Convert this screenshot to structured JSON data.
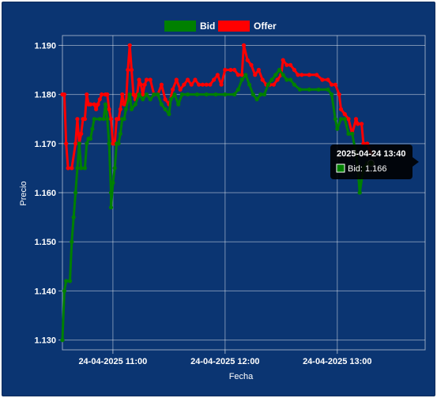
{
  "chart_data": {
    "type": "line",
    "title": "",
    "xlabel": "Fecha",
    "ylabel": "Precio",
    "ylim": [
      1.128,
      1.192
    ],
    "xlim": [
      "2025-04-24 10:33",
      "2025-04-24 13:47"
    ],
    "y_ticks": [
      "1.130",
      "1.140",
      "1.150",
      "1.160",
      "1.170",
      "1.180",
      "1.190"
    ],
    "x_ticks": [
      {
        "t": "2025-04-24 11:00",
        "label": "24-04-2025 11:00"
      },
      {
        "t": "2025-04-24 12:00",
        "label": "24-04-2025 12:00"
      },
      {
        "t": "2025-04-24 13:00",
        "label": "24-04-2025 13:00"
      }
    ],
    "grid": true,
    "legend_position": "top-center",
    "series": [
      {
        "name": "Bid",
        "color": "#008000",
        "points": [
          [
            "2025-04-24 10:33",
            1.13
          ],
          [
            "2025-04-24 10:34",
            1.14
          ],
          [
            "2025-04-24 10:35",
            1.142
          ],
          [
            "2025-04-24 10:37",
            1.142
          ],
          [
            "2025-04-24 10:38",
            1.15
          ],
          [
            "2025-04-24 10:39",
            1.155
          ],
          [
            "2025-04-24 10:40",
            1.16
          ],
          [
            "2025-04-24 10:41",
            1.165
          ],
          [
            "2025-04-24 10:42",
            1.17
          ],
          [
            "2025-04-24 10:43",
            1.165
          ],
          [
            "2025-04-24 10:45",
            1.165
          ],
          [
            "2025-04-24 10:46",
            1.17
          ],
          [
            "2025-04-24 10:47",
            1.171
          ],
          [
            "2025-04-24 10:48",
            1.171
          ],
          [
            "2025-04-24 10:49",
            1.173
          ],
          [
            "2025-04-24 10:50",
            1.175
          ],
          [
            "2025-04-24 10:53",
            1.175
          ],
          [
            "2025-04-24 10:55",
            1.175
          ],
          [
            "2025-04-24 10:56",
            1.178
          ],
          [
            "2025-04-24 10:57",
            1.175
          ],
          [
            "2025-04-24 10:58",
            1.17
          ],
          [
            "2025-04-24 10:59",
            1.16
          ],
          [
            "2025-04-24 10:59",
            1.157
          ],
          [
            "2025-04-24 11:00",
            1.162
          ],
          [
            "2025-04-24 11:01",
            1.165
          ],
          [
            "2025-04-24 11:02",
            1.17
          ],
          [
            "2025-04-24 11:03",
            1.17
          ],
          [
            "2025-04-24 11:04",
            1.172
          ],
          [
            "2025-04-24 11:05",
            1.175
          ],
          [
            "2025-04-24 11:06",
            1.175
          ],
          [
            "2025-04-24 11:07",
            1.177
          ],
          [
            "2025-04-24 11:09",
            1.18
          ],
          [
            "2025-04-24 11:10",
            1.177
          ],
          [
            "2025-04-24 11:12",
            1.178
          ],
          [
            "2025-04-24 11:14",
            1.18
          ],
          [
            "2025-04-24 11:16",
            1.179
          ],
          [
            "2025-04-24 11:18",
            1.18
          ],
          [
            "2025-04-24 11:20",
            1.179
          ],
          [
            "2025-04-24 11:22",
            1.18
          ],
          [
            "2025-04-24 11:24",
            1.18
          ],
          [
            "2025-04-24 11:26",
            1.178
          ],
          [
            "2025-04-24 11:28",
            1.177
          ],
          [
            "2025-04-24 11:30",
            1.176
          ],
          [
            "2025-04-24 11:31",
            1.179
          ],
          [
            "2025-04-24 11:33",
            1.18
          ],
          [
            "2025-04-24 11:35",
            1.178
          ],
          [
            "2025-04-24 11:37",
            1.18
          ],
          [
            "2025-04-24 11:40",
            1.18
          ],
          [
            "2025-04-24 11:45",
            1.18
          ],
          [
            "2025-04-24 11:50",
            1.18
          ],
          [
            "2025-04-24 11:55",
            1.18
          ],
          [
            "2025-04-24 12:00",
            1.18
          ],
          [
            "2025-04-24 12:05",
            1.18
          ],
          [
            "2025-04-24 12:07",
            1.181
          ],
          [
            "2025-04-24 12:09",
            1.183
          ],
          [
            "2025-04-24 12:11",
            1.184
          ],
          [
            "2025-04-24 12:13",
            1.182
          ],
          [
            "2025-04-24 12:15",
            1.18
          ],
          [
            "2025-04-24 12:17",
            1.179
          ],
          [
            "2025-04-24 12:19",
            1.18
          ],
          [
            "2025-04-24 12:21",
            1.18
          ],
          [
            "2025-04-24 12:23",
            1.182
          ],
          [
            "2025-04-24 12:25",
            1.183
          ],
          [
            "2025-04-24 12:27",
            1.184
          ],
          [
            "2025-04-24 12:29",
            1.185
          ],
          [
            "2025-04-24 12:31",
            1.184
          ],
          [
            "2025-04-24 12:33",
            1.183
          ],
          [
            "2025-04-24 12:35",
            1.183
          ],
          [
            "2025-04-24 12:37",
            1.182
          ],
          [
            "2025-04-24 12:40",
            1.181
          ],
          [
            "2025-04-24 12:45",
            1.181
          ],
          [
            "2025-04-24 12:50",
            1.181
          ],
          [
            "2025-04-24 12:55",
            1.181
          ],
          [
            "2025-04-24 12:57",
            1.18
          ],
          [
            "2025-04-24 12:59",
            1.175
          ],
          [
            "2025-04-24 13:00",
            1.173
          ],
          [
            "2025-04-24 13:02",
            1.175
          ],
          [
            "2025-04-24 13:04",
            1.175
          ],
          [
            "2025-04-24 13:06",
            1.172
          ],
          [
            "2025-04-24 13:08",
            1.172
          ],
          [
            "2025-04-24 13:10",
            1.168
          ],
          [
            "2025-04-24 13:11",
            1.165
          ],
          [
            "2025-04-24 13:12",
            1.16
          ],
          [
            "2025-04-24 13:14",
            1.165
          ],
          [
            "2025-04-24 13:16",
            1.166
          ],
          [
            "2025-04-24 13:18",
            1.166
          ]
        ]
      },
      {
        "name": "Offer",
        "color": "#ff0000",
        "points": [
          [
            "2025-04-24 10:33",
            1.18
          ],
          [
            "2025-04-24 10:34",
            1.18
          ],
          [
            "2025-04-24 10:35",
            1.17
          ],
          [
            "2025-04-24 10:36",
            1.165
          ],
          [
            "2025-04-24 10:38",
            1.165
          ],
          [
            "2025-04-24 10:40",
            1.17
          ],
          [
            "2025-04-24 10:41",
            1.175
          ],
          [
            "2025-04-24 10:42",
            1.17
          ],
          [
            "2025-04-24 10:43",
            1.172
          ],
          [
            "2025-04-24 10:44",
            1.175
          ],
          [
            "2025-04-24 10:45",
            1.175
          ],
          [
            "2025-04-24 10:46",
            1.18
          ],
          [
            "2025-04-24 10:47",
            1.178
          ],
          [
            "2025-04-24 10:48",
            1.178
          ],
          [
            "2025-04-24 10:50",
            1.178
          ],
          [
            "2025-04-24 10:51",
            1.177
          ],
          [
            "2025-04-24 10:52",
            1.178
          ],
          [
            "2025-04-24 10:53",
            1.179
          ],
          [
            "2025-04-24 10:54",
            1.18
          ],
          [
            "2025-04-24 10:56",
            1.18
          ],
          [
            "2025-04-24 10:57",
            1.18
          ],
          [
            "2025-04-24 10:58",
            1.177
          ],
          [
            "2025-04-24 10:59",
            1.175
          ],
          [
            "2025-04-24 11:00",
            1.17
          ],
          [
            "2025-04-24 11:01",
            1.17
          ],
          [
            "2025-04-24 11:02",
            1.175
          ],
          [
            "2025-04-24 11:03",
            1.175
          ],
          [
            "2025-04-24 11:04",
            1.177
          ],
          [
            "2025-04-24 11:05",
            1.18
          ],
          [
            "2025-04-24 11:06",
            1.178
          ],
          [
            "2025-04-24 11:07",
            1.178
          ],
          [
            "2025-04-24 11:08",
            1.185
          ],
          [
            "2025-04-24 11:09",
            1.19
          ],
          [
            "2025-04-24 11:10",
            1.185
          ],
          [
            "2025-04-24 11:11",
            1.18
          ],
          [
            "2025-04-24 11:12",
            1.179
          ],
          [
            "2025-04-24 11:13",
            1.18
          ],
          [
            "2025-04-24 11:14",
            1.183
          ],
          [
            "2025-04-24 11:15",
            1.182
          ],
          [
            "2025-04-24 11:16",
            1.18
          ],
          [
            "2025-04-24 11:17",
            1.182
          ],
          [
            "2025-04-24 11:18",
            1.183
          ],
          [
            "2025-04-24 11:20",
            1.183
          ],
          [
            "2025-04-24 11:22",
            1.18
          ],
          [
            "2025-04-24 11:24",
            1.18
          ],
          [
            "2025-04-24 11:26",
            1.182
          ],
          [
            "2025-04-24 11:28",
            1.179
          ],
          [
            "2025-04-24 11:30",
            1.178
          ],
          [
            "2025-04-24 11:32",
            1.181
          ],
          [
            "2025-04-24 11:34",
            1.183
          ],
          [
            "2025-04-24 11:36",
            1.181
          ],
          [
            "2025-04-24 11:38",
            1.182
          ],
          [
            "2025-04-24 11:40",
            1.183
          ],
          [
            "2025-04-24 11:42",
            1.182
          ],
          [
            "2025-04-24 11:44",
            1.183
          ],
          [
            "2025-04-24 11:46",
            1.182
          ],
          [
            "2025-04-24 11:48",
            1.182
          ],
          [
            "2025-04-24 11:50",
            1.182
          ],
          [
            "2025-04-24 11:52",
            1.182
          ],
          [
            "2025-04-24 11:54",
            1.183
          ],
          [
            "2025-04-24 11:56",
            1.184
          ],
          [
            "2025-04-24 11:58",
            1.182
          ],
          [
            "2025-04-24 12:00",
            1.185
          ],
          [
            "2025-04-24 12:03",
            1.185
          ],
          [
            "2025-04-24 12:05",
            1.185
          ],
          [
            "2025-04-24 12:07",
            1.184
          ],
          [
            "2025-04-24 12:09",
            1.184
          ],
          [
            "2025-04-24 12:10",
            1.19
          ],
          [
            "2025-04-24 12:12",
            1.187
          ],
          [
            "2025-04-24 12:14",
            1.186
          ],
          [
            "2025-04-24 12:16",
            1.184
          ],
          [
            "2025-04-24 12:18",
            1.185
          ],
          [
            "2025-04-24 12:20",
            1.183
          ],
          [
            "2025-04-24 12:22",
            1.182
          ],
          [
            "2025-04-24 12:24",
            1.182
          ],
          [
            "2025-04-24 12:26",
            1.182
          ],
          [
            "2025-04-24 12:28",
            1.183
          ],
          [
            "2025-04-24 12:30",
            1.184
          ],
          [
            "2025-04-24 12:31",
            1.187
          ],
          [
            "2025-04-24 12:33",
            1.186
          ],
          [
            "2025-04-24 12:35",
            1.186
          ],
          [
            "2025-04-24 12:37",
            1.185
          ],
          [
            "2025-04-24 12:39",
            1.184
          ],
          [
            "2025-04-24 12:41",
            1.184
          ],
          [
            "2025-04-24 12:45",
            1.184
          ],
          [
            "2025-04-24 12:49",
            1.184
          ],
          [
            "2025-04-24 12:52",
            1.183
          ],
          [
            "2025-04-24 12:55",
            1.183
          ],
          [
            "2025-04-24 12:57",
            1.182
          ],
          [
            "2025-04-24 12:59",
            1.182
          ],
          [
            "2025-04-24 13:01",
            1.18
          ],
          [
            "2025-04-24 13:02",
            1.177
          ],
          [
            "2025-04-24 13:04",
            1.176
          ],
          [
            "2025-04-24 13:06",
            1.175
          ],
          [
            "2025-04-24 13:08",
            1.172
          ],
          [
            "2025-04-24 13:10",
            1.175
          ],
          [
            "2025-04-24 13:11",
            1.174
          ],
          [
            "2025-04-24 13:13",
            1.174
          ],
          [
            "2025-04-24 13:14",
            1.17
          ],
          [
            "2025-04-24 13:16",
            1.17
          ],
          [
            "2025-04-24 13:18",
            1.168
          ]
        ]
      }
    ],
    "tooltip": {
      "title": "2025-04-24 13:40",
      "text": "Bid: 1.166",
      "series": "Bid"
    }
  },
  "legend": {
    "bid_label": "Bid",
    "offer_label": "Offer",
    "bid_color": "#008000",
    "offer_color": "#ff0000"
  }
}
